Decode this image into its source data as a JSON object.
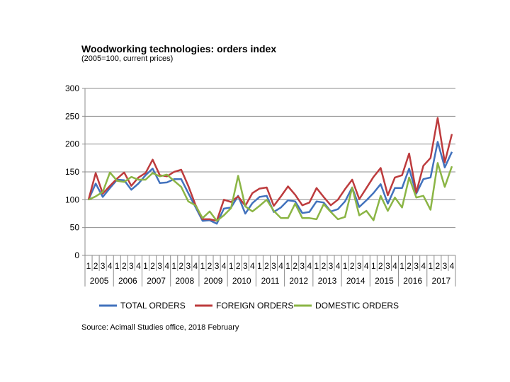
{
  "chart_data": {
    "type": "line",
    "title": "Woodworking technologies: orders index",
    "subtitle": "(2005=100, current prices)",
    "source": "Source: Acimall Studies office, 2018 February",
    "xlabel": "",
    "ylabel": "",
    "ylim": [
      0,
      300
    ],
    "yticks": [
      "0",
      "50",
      "100",
      "150",
      "200",
      "250",
      "300"
    ],
    "grid": true,
    "legend_position": "bottom",
    "quarters": [
      "1",
      "2",
      "3",
      "4"
    ],
    "years": [
      "2005",
      "2006",
      "2007",
      "2008",
      "2009",
      "2010",
      "2011",
      "2012",
      "2013",
      "2014",
      "2015",
      "2016",
      "2017"
    ],
    "series": [
      {
        "name": "TOTAL ORDERS",
        "color": "#4272BD",
        "values": [
          100,
          129,
          105,
          121,
          136,
          135,
          118,
          129,
          144,
          156,
          130,
          131,
          137,
          137,
          112,
          87,
          62,
          63,
          57,
          84,
          86,
          107,
          75,
          94,
          105,
          107,
          78,
          86,
          99,
          97,
          76,
          78,
          97,
          95,
          79,
          83,
          97,
          122,
          87,
          99,
          112,
          128,
          93,
          121,
          121,
          156,
          111,
          137,
          140,
          204,
          158,
          186
        ]
      },
      {
        "name": "FOREIGN ORDERS",
        "color": "#BD3B3D",
        "values": [
          100,
          148,
          111,
          125,
          138,
          149,
          125,
          140,
          148,
          172,
          144,
          142,
          150,
          154,
          125,
          91,
          65,
          65,
          62,
          100,
          96,
          106,
          89,
          112,
          120,
          122,
          89,
          106,
          124,
          109,
          90,
          95,
          121,
          105,
          90,
          100,
          119,
          136,
          101,
          121,
          141,
          157,
          108,
          140,
          144,
          183,
          113,
          161,
          175,
          247,
          167,
          218
        ]
      },
      {
        "name": "DOMESTIC ORDERS",
        "color": "#8BB545",
        "values": [
          100,
          106,
          114,
          149,
          134,
          132,
          141,
          136,
          136,
          148,
          142,
          145,
          134,
          123,
          97,
          90,
          67,
          79,
          62,
          72,
          85,
          143,
          88,
          79,
          89,
          100,
          80,
          67,
          67,
          93,
          67,
          67,
          65,
          92,
          78,
          65,
          69,
          122,
          72,
          80,
          63,
          107,
          80,
          104,
          86,
          140,
          104,
          107,
          82,
          166,
          123,
          160
        ]
      }
    ]
  }
}
